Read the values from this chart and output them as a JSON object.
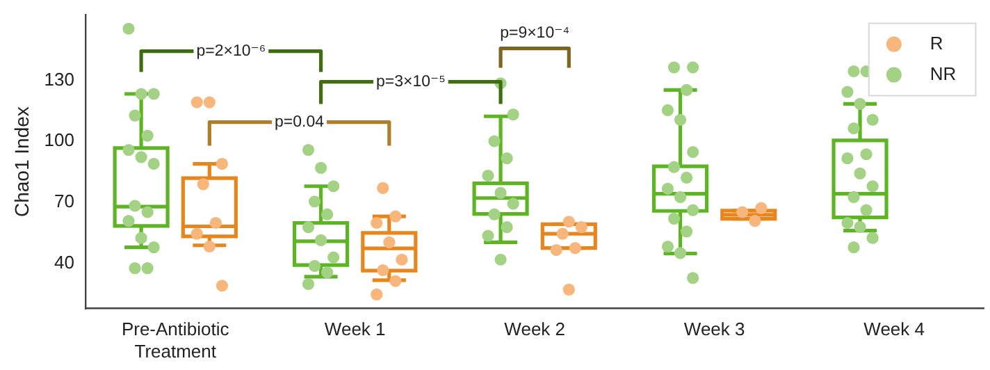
{
  "chart_data": {
    "type": "box",
    "ylabel": "Chao1 Index",
    "categories": [
      "Pre-Antibiotic Treatment",
      "Week 1",
      "Week 2",
      "Week 3",
      "Week 4"
    ],
    "ylim": [
      18,
      162
    ],
    "yticks": [
      40,
      70,
      100,
      130
    ],
    "legend": "top right",
    "marker": "circle",
    "annotations": [
      "p=2×10⁻⁶",
      "p=0.04",
      "p=3×10⁻⁵",
      "p=9×10⁻⁴"
    ],
    "series": [
      {
        "type": "box",
        "color": "#5db524",
        "boxes": [
          {
            "low": 48,
            "q1": 58.5,
            "median": 68,
            "q3": 96.7,
            "high": 123.3
          },
          {
            "low": 33.6,
            "q1": 39.3,
            "median": 51,
            "q3": 60,
            "high": 78
          },
          {
            "low": 50.5,
            "q1": 64.4,
            "median": 72.2,
            "q3": 79.4,
            "high": 112.3
          },
          {
            "low": 45,
            "q1": 65.9,
            "median": 74.3,
            "q3": 87.8,
            "high": 125.2
          },
          {
            "low": 56.2,
            "q1": 62.7,
            "median": 74.3,
            "q3": 100.5,
            "high": 118.4
          }
        ]
      },
      {
        "type": "box",
        "color": "#e8861e",
        "boxes": [
          {
            "low": 49,
            "q1": 53.4,
            "median": 58.3,
            "q3": 82,
            "high": 89
          },
          {
            "low": 31.9,
            "q1": 36.6,
            "median": 47.5,
            "q3": 55.1,
            "high": 63.2
          },
          {
            "low": 47.7,
            "q1": 47.7,
            "median": 54.7,
            "q3": 59.4,
            "high": 59.4
          },
          {
            "low": 62,
            "q1": 62,
            "median": 64,
            "q3": 66,
            "high": 66
          },
          null
        ]
      },
      {
        "type": "scatter",
        "name": "NR",
        "color": "#a3d285",
        "x": [
          "Pre-Antibiotic Treatment",
          "Pre-Antibiotic Treatment",
          "Pre-Antibiotic Treatment",
          "Pre-Antibiotic Treatment",
          "Pre-Antibiotic Treatment",
          "Pre-Antibiotic Treatment",
          "Pre-Antibiotic Treatment",
          "Pre-Antibiotic Treatment",
          "Pre-Antibiotic Treatment",
          "Pre-Antibiotic Treatment",
          "Pre-Antibiotic Treatment",
          "Pre-Antibiotic Treatment",
          "Pre-Antibiotic Treatment",
          "Pre-Antibiotic Treatment",
          "Pre-Antibiotic Treatment",
          "Week 1",
          "Week 1",
          "Week 1",
          "Week 1",
          "Week 1",
          "Week 1",
          "Week 1",
          "Week 1",
          "Week 1",
          "Week 1",
          "Week 1",
          "Week 2",
          "Week 2",
          "Week 2",
          "Week 2",
          "Week 2",
          "Week 2",
          "Week 2",
          "Week 2",
          "Week 2",
          "Week 2",
          "Week 2",
          "Week 3",
          "Week 3",
          "Week 3",
          "Week 3",
          "Week 3",
          "Week 3",
          "Week 3",
          "Week 3",
          "Week 3",
          "Week 3",
          "Week 3",
          "Week 3",
          "Week 3",
          "Week 3",
          "Week 3",
          "Week 3",
          "Week 4",
          "Week 4",
          "Week 4",
          "Week 4",
          "Week 4",
          "Week 4",
          "Week 4",
          "Week 4",
          "Week 4",
          "Week 4",
          "Week 4",
          "Week 4",
          "Week 4",
          "Week 4",
          "Week 4",
          "Week 4"
        ],
        "values": [
          155.3,
          123.3,
          123.3,
          112.7,
          102.8,
          95.8,
          92.3,
          89,
          68.4,
          65.3,
          61,
          52.6,
          48,
          37.8,
          37.8,
          95.8,
          87,
          78,
          70.5,
          64.2,
          57.9,
          51.5,
          43.1,
          38.9,
          35.7,
          30,
          128.5,
          113.2,
          100.1,
          91.7,
          83.2,
          74.7,
          69.4,
          64.2,
          57.9,
          53.7,
          42,
          136.3,
          136.3,
          125.2,
          115.3,
          110.6,
          94.8,
          87.4,
          82.2,
          76.8,
          72.7,
          66.3,
          62.1,
          55.8,
          48.4,
          45.2,
          33,
          134.4,
          134.4,
          124.3,
          118.4,
          110.6,
          106.4,
          93.7,
          91.7,
          84.3,
          78,
          72.7,
          66.3,
          60,
          58,
          52.6,
          48
        ]
      },
      {
        "type": "scatter",
        "name": "R",
        "color": "#f7b67c",
        "x": [
          "Pre-Antibiotic Treatment",
          "Pre-Antibiotic Treatment",
          "Pre-Antibiotic Treatment",
          "Pre-Antibiotic Treatment",
          "Pre-Antibiotic Treatment",
          "Pre-Antibiotic Treatment",
          "Pre-Antibiotic Treatment",
          "Pre-Antibiotic Treatment",
          "Week 1",
          "Week 1",
          "Week 1",
          "Week 1",
          "Week 1",
          "Week 1",
          "Week 1",
          "Week 1",
          "Week 2",
          "Week 2",
          "Week 2",
          "Week 2",
          "Week 2",
          "Week 2",
          "Week 3",
          "Week 3",
          "Week 3"
        ],
        "values": [
          119.2,
          119.2,
          89,
          79,
          60,
          54.7,
          48.4,
          29.2,
          77.1,
          63.2,
          60,
          50.5,
          42,
          36.8,
          31.5,
          24.9,
          60.6,
          57.9,
          54.7,
          47.7,
          46.7,
          27.3,
          67.3,
          65.3,
          61
        ]
      }
    ]
  }
}
